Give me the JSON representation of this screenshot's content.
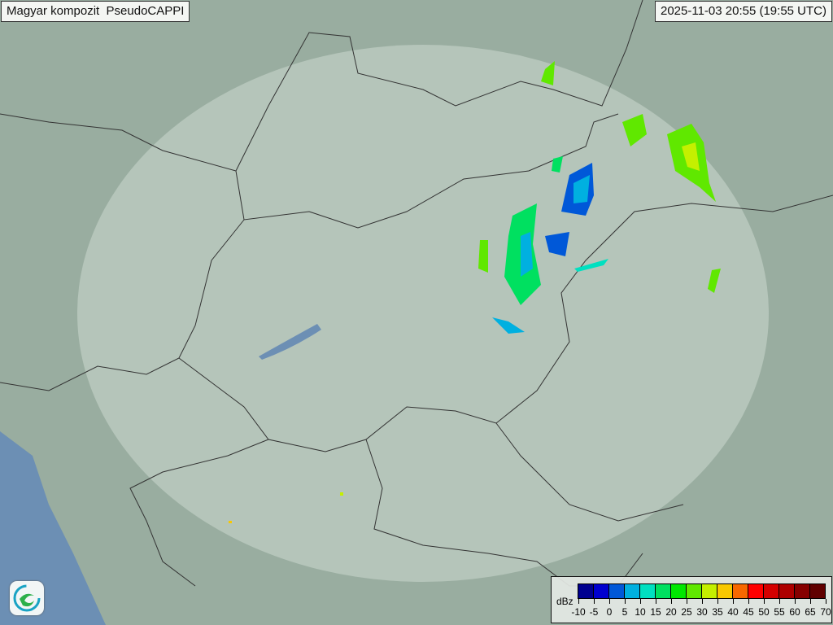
{
  "header": {
    "title": "Magyar kompozit  PseudoCAPPI",
    "timestamp": "2025-11-03 20:55 (19:55 UTC)"
  },
  "legend": {
    "unit": "dBz",
    "ticks": [
      "-10",
      "-5",
      "0",
      "5",
      "10",
      "15",
      "20",
      "25",
      "30",
      "35",
      "40",
      "45",
      "50",
      "55",
      "60",
      "65",
      "70"
    ],
    "colors": [
      "#00008f",
      "#0000cf",
      "#0058d8",
      "#00b0e0",
      "#00e0c0",
      "#00e060",
      "#00e800",
      "#60e800",
      "#c4f000",
      "#f8c800",
      "#f86800",
      "#ff0000",
      "#d40000",
      "#ae0000",
      "#860000",
      "#600000"
    ]
  },
  "map": {
    "base_color": "#8fa59a",
    "coverage_color": "#d8e2da",
    "water_color": "#6c8fb4",
    "border_color": "#333333"
  },
  "logo": {
    "icon": "swirl-logo-icon"
  }
}
